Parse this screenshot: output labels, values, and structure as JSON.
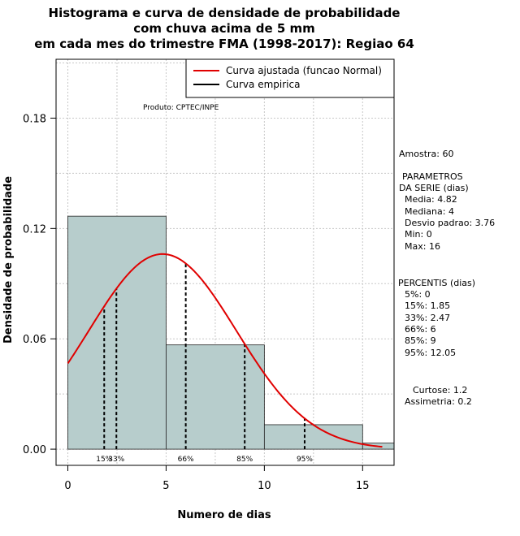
{
  "chart_data": {
    "type": "bar",
    "title_lines": [
      "Histograma e curva de densidade de probabilidade",
      "com chuva acima de 5 mm",
      "em cada mes do trimestre FMA (1998-2017): Regiao 64"
    ],
    "xlabel": "Numero de dias",
    "ylabel": "Densidade de probabilidade",
    "xlim": [
      -0.6,
      16.6
    ],
    "ylim": [
      -0.0088,
      0.212
    ],
    "x_ticks": [
      0,
      5,
      10,
      15
    ],
    "x_tick_labels": [
      "0",
      "5",
      "10",
      "15"
    ],
    "y_ticks": [
      0.0,
      0.06,
      0.12,
      0.18
    ],
    "y_tick_labels": [
      "0.00",
      "0.06",
      "0.12",
      "0.18"
    ],
    "grid": true,
    "bins": [
      {
        "x0": 0,
        "x1": 5,
        "density": 0.1267
      },
      {
        "x0": 5,
        "x1": 10,
        "density": 0.0567
      },
      {
        "x0": 10,
        "x1": 15,
        "density": 0.0133
      },
      {
        "x0": 15,
        "x1": 20,
        "density": 0.0033
      }
    ],
    "bar_color": "#b7cdcc",
    "curve": {
      "name": "Curva ajustada (funcao Normal)",
      "mean": 4.82,
      "sd": 3.76,
      "x_from": 0,
      "x_to": 16,
      "color": "#e00000"
    },
    "empirical": {
      "name": "Curva empirica",
      "color": "#000000"
    },
    "percentile_lines": [
      {
        "label": "15%",
        "x": 1.85
      },
      {
        "label": "33%",
        "x": 2.47
      },
      {
        "label": "66%",
        "x": 6
      },
      {
        "label": "85%",
        "x": 9
      },
      {
        "label": "95%",
        "x": 12.05
      }
    ],
    "legend": {
      "position": "top-right",
      "entries": [
        "Curva ajustada (funcao Normal)",
        "Curva empirica"
      ]
    },
    "annotation": "Produto: CPTEC/INPE",
    "side_text": {
      "amostra": "Amostra: 60",
      "param_title_1": "PARAMETROS",
      "param_title_2": "DA SERIE (dias)",
      "media": "Media: 4.82",
      "mediana": "Mediana: 4",
      "desvio": "Desvio padrao: 3.76",
      "min": "Min: 0",
      "max": "Max: 16",
      "percentis_title": "PERCENTIS (dias)",
      "p5": "5%: 0",
      "p15": "15%: 1.85",
      "p33": "33%: 2.47",
      "p66": "66%: 6",
      "p85": "85%: 9",
      "p95": "95%: 12.05",
      "curtose": "Curtose: 1.2",
      "assimetria": "Assimetria: 0.2"
    }
  }
}
